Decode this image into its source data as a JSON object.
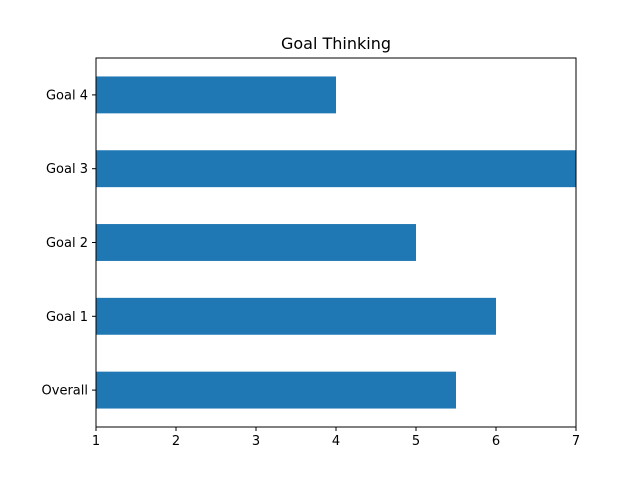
{
  "chart_data": {
    "type": "bar",
    "orientation": "horizontal",
    "title": "Goal Thinking",
    "xlabel": "",
    "ylabel": "",
    "categories": [
      "Overall",
      "Goal 1",
      "Goal 2",
      "Goal 3",
      "Goal 4"
    ],
    "values": [
      5.5,
      6,
      5,
      7,
      4
    ],
    "xlim": [
      1,
      7
    ],
    "xticks": [
      "1",
      "2",
      "3",
      "4",
      "5",
      "6",
      "7"
    ],
    "bar_color": "#1f77b4",
    "grid": false,
    "legend": "none"
  }
}
